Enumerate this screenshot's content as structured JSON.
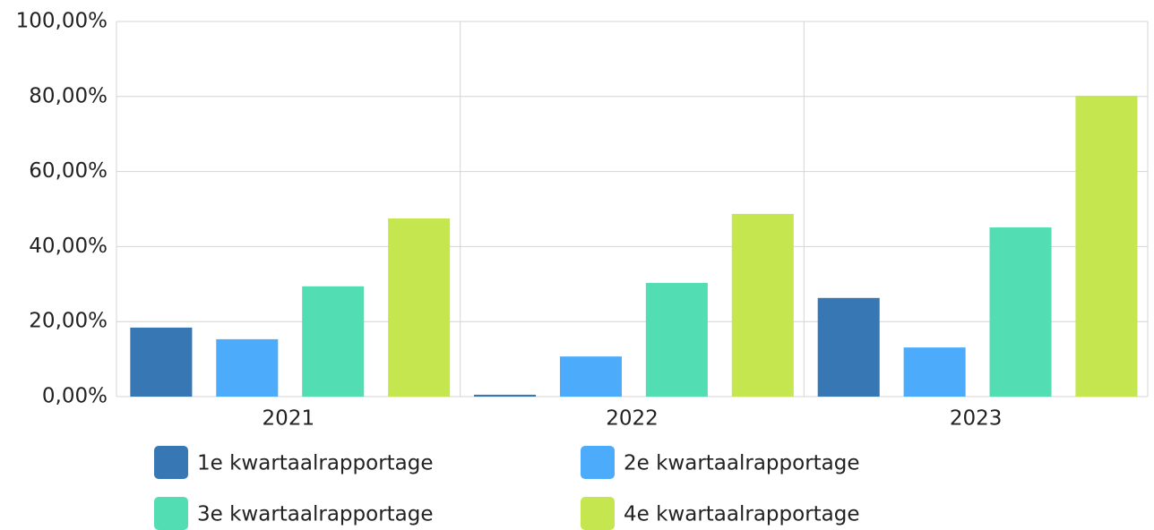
{
  "chart_data": {
    "type": "bar",
    "categories": [
      "2021",
      "2022",
      "2023"
    ],
    "series": [
      {
        "name": "1e kwartaalrapportage",
        "color": "#3778b4",
        "values": [
          18.4,
          0.5,
          26.3
        ]
      },
      {
        "name": "2e kwartaalrapportage",
        "color": "#4dabfc",
        "values": [
          15.3,
          10.7,
          13.1
        ]
      },
      {
        "name": "3e kwartaalrapportage",
        "color": "#52ddb3",
        "values": [
          29.4,
          30.3,
          45.1
        ]
      },
      {
        "name": "4e kwartaalrapportage",
        "color": "#c6e64f",
        "values": [
          47.5,
          48.7,
          80.2
        ]
      }
    ],
    "ylim": [
      0,
      100
    ],
    "yticks": [
      {
        "value": 0,
        "label": "0,00%"
      },
      {
        "value": 20,
        "label": "20,00%"
      },
      {
        "value": 40,
        "label": "40,00%"
      },
      {
        "value": 60,
        "label": "60,00%"
      },
      {
        "value": 80,
        "label": "80,00%"
      },
      {
        "value": 100,
        "label": "100,00%"
      }
    ],
    "grid": true,
    "legend": "bottom"
  }
}
